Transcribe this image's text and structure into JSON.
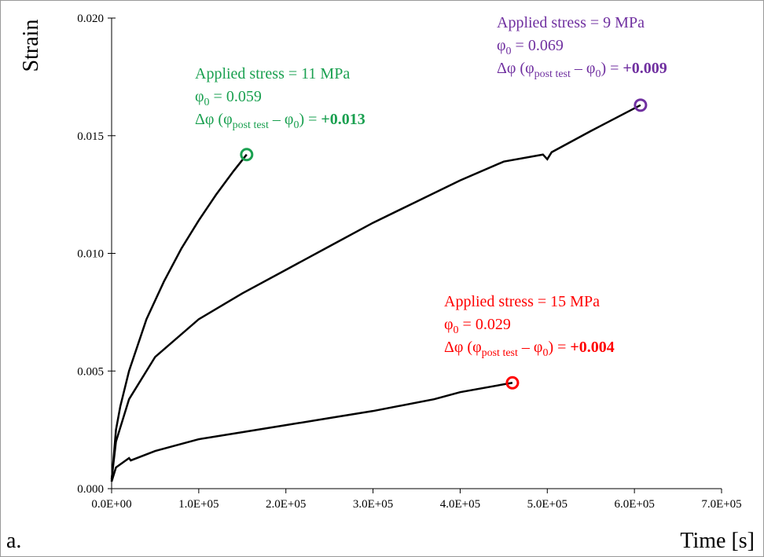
{
  "chart_data": {
    "type": "line",
    "y_label": "Strain",
    "x_label": "Time [s]",
    "panel_label": "a.",
    "xlim": [
      0,
      700000
    ],
    "ylim": [
      0,
      0.02
    ],
    "xticks": [
      {
        "value": 0,
        "label": "0.0E+00"
      },
      {
        "value": 100000,
        "label": "1.0E+05"
      },
      {
        "value": 200000,
        "label": "2.0E+05"
      },
      {
        "value": 300000,
        "label": "3.0E+05"
      },
      {
        "value": 400000,
        "label": "4.0E+05"
      },
      {
        "value": 500000,
        "label": "5.0E+05"
      },
      {
        "value": 600000,
        "label": "6.0E+05"
      },
      {
        "value": 700000,
        "label": "7.0E+05"
      }
    ],
    "yticks": [
      {
        "value": 0,
        "label": "0.000"
      },
      {
        "value": 0.005,
        "label": "0.005"
      },
      {
        "value": 0.01,
        "label": "0.010"
      },
      {
        "value": 0.015,
        "label": "0.015"
      },
      {
        "value": 0.02,
        "label": "0.020"
      }
    ],
    "series": [
      {
        "color": "#000000",
        "marker_color": "#1aa050",
        "x": [
          0,
          5000,
          10000,
          20000,
          40000,
          60000,
          80000,
          100000,
          120000,
          140000,
          155000
        ],
        "values": [
          0.0003,
          0.0025,
          0.0035,
          0.005,
          0.0072,
          0.0088,
          0.0102,
          0.0114,
          0.0125,
          0.0135,
          0.0142
        ]
      },
      {
        "color": "#000000",
        "marker_color": "#7030a0",
        "x": [
          0,
          5000,
          20000,
          50000,
          100000,
          150000,
          200000,
          250000,
          300000,
          350000,
          400000,
          450000,
          495000,
          500000,
          505000,
          550000,
          607000
        ],
        "values": [
          0.0004,
          0.002,
          0.0038,
          0.0056,
          0.0072,
          0.0083,
          0.0093,
          0.0103,
          0.0113,
          0.0122,
          0.0131,
          0.0139,
          0.0142,
          0.014,
          0.0143,
          0.0152,
          0.0163
        ]
      },
      {
        "color": "#000000",
        "marker_color": "#ff0000",
        "x": [
          0,
          5000,
          20000,
          22000,
          50000,
          100000,
          150000,
          200000,
          250000,
          300000,
          370000,
          400000,
          460000
        ],
        "values": [
          0.0003,
          0.0009,
          0.0013,
          0.0012,
          0.0016,
          0.0021,
          0.0024,
          0.0027,
          0.003,
          0.0033,
          0.0038,
          0.0041,
          0.0045
        ]
      }
    ],
    "annotations": [
      {
        "color": "#1aa050",
        "stress": "Applied stress = 11 MPa",
        "phi0": [
          "φ",
          "0",
          " = 0.059"
        ],
        "dphi": [
          "Δφ (φ",
          "post test",
          " – φ",
          "0",
          ") = ",
          "+0.013"
        ]
      },
      {
        "color": "#7030a0",
        "stress": "Applied stress = 9 MPa",
        "phi0": [
          "φ",
          "0",
          " = 0.069"
        ],
        "dphi": [
          "Δφ (φ",
          "post test",
          " – φ",
          "0",
          ") = ",
          "+0.009"
        ]
      },
      {
        "color": "#ff0000",
        "stress": "Applied stress = 15 MPa",
        "phi0": [
          "φ",
          "0",
          " = 0.029"
        ],
        "dphi": [
          "Δφ (φ",
          "post test",
          " – φ",
          "0",
          ") = ",
          "+0.004"
        ]
      }
    ]
  }
}
